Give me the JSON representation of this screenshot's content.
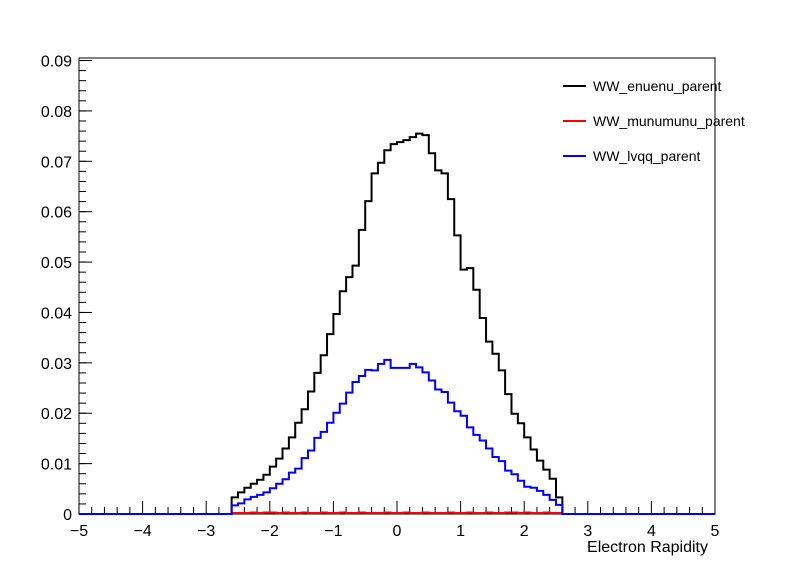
{
  "chart_data": {
    "type": "line",
    "style": "step-histogram",
    "title": "",
    "xlabel": "Electron Rapidity",
    "ylabel": "",
    "xlim": [
      -5,
      5
    ],
    "ylim": [
      0,
      0.0905
    ],
    "grid": false,
    "legend_position": "top-right",
    "x_ticks": [
      -5,
      -4,
      -3,
      -2,
      -1,
      0,
      1,
      2,
      3,
      4,
      5
    ],
    "x_tick_labels": [
      "−5",
      "−4",
      "−3",
      "−2",
      "−1",
      "0",
      "1",
      "2",
      "3",
      "4",
      "5"
    ],
    "y_ticks": [
      0,
      0.01,
      0.02,
      0.03,
      0.04,
      0.05,
      0.06,
      0.07,
      0.08,
      0.09
    ],
    "y_tick_labels": [
      "0",
      "0.01",
      "0.02",
      "0.03",
      "0.04",
      "0.05",
      "0.06",
      "0.07",
      "0.08",
      "0.09"
    ],
    "bin_width": 0.1,
    "x": [
      -2.6,
      -2.5,
      -2.4,
      -2.3,
      -2.2,
      -2.1,
      -2.0,
      -1.9,
      -1.8,
      -1.7,
      -1.6,
      -1.5,
      -1.4,
      -1.3,
      -1.2,
      -1.1,
      -1.0,
      -0.9,
      -0.8,
      -0.7,
      -0.6,
      -0.5,
      -0.4,
      -0.3,
      -0.2,
      -0.1,
      0.0,
      0.1,
      0.2,
      0.3,
      0.4,
      0.5,
      0.6,
      0.7,
      0.8,
      0.9,
      1.0,
      1.1,
      1.2,
      1.3,
      1.4,
      1.5,
      1.6,
      1.7,
      1.8,
      1.9,
      2.0,
      2.1,
      2.2,
      2.3,
      2.4,
      2.5
    ],
    "series": [
      {
        "name": "WW_enuenu_parent",
        "color": "#000000",
        "values": [
          0.0033,
          0.0043,
          0.0052,
          0.006,
          0.0068,
          0.0078,
          0.0094,
          0.011,
          0.013,
          0.0152,
          0.0181,
          0.0208,
          0.0243,
          0.028,
          0.0315,
          0.0357,
          0.0397,
          0.0442,
          0.047,
          0.0493,
          0.0564,
          0.0621,
          0.0676,
          0.0697,
          0.0722,
          0.0734,
          0.0738,
          0.0742,
          0.0748,
          0.0755,
          0.0752,
          0.0716,
          0.0682,
          0.0676,
          0.0625,
          0.0553,
          0.0485,
          0.0488,
          0.0445,
          0.0389,
          0.0342,
          0.0318,
          0.0285,
          0.0238,
          0.0199,
          0.018,
          0.0152,
          0.0128,
          0.0106,
          0.0088,
          0.007,
          0.0033
        ]
      },
      {
        "name": "WW_munumunu_parent",
        "color": "#ff0000",
        "values": [
          0.0002,
          0.0002,
          0.0002,
          0.0003,
          0.0002,
          0.0003,
          0.0003,
          0.0002,
          0.0003,
          0.0002,
          0.0002,
          0.0003,
          0.0002,
          0.0002,
          0.0003,
          0.0002,
          0.0002,
          0.0003,
          0.0002,
          0.0002,
          0.0003,
          0.0002,
          0.0002,
          0.0002,
          0.0003,
          0.0002,
          0.0002,
          0.0003,
          0.0002,
          0.0002,
          0.0003,
          0.0002,
          0.0002,
          0.0002,
          0.0003,
          0.0002,
          0.0002,
          0.0003,
          0.0002,
          0.0002,
          0.0003,
          0.0002,
          0.0002,
          0.0003,
          0.0003,
          0.0002,
          0.0003,
          0.0002,
          0.0002,
          0.0003,
          0.0002,
          0.0002
        ]
      },
      {
        "name": "WW_lvqq_parent",
        "color": "#0000ff",
        "values": [
          0.0017,
          0.0021,
          0.0029,
          0.0034,
          0.0038,
          0.0043,
          0.0051,
          0.006,
          0.0069,
          0.0082,
          0.009,
          0.0111,
          0.0126,
          0.0151,
          0.0163,
          0.0181,
          0.0201,
          0.0219,
          0.0241,
          0.0262,
          0.0274,
          0.0286,
          0.0285,
          0.0298,
          0.0306,
          0.029,
          0.029,
          0.029,
          0.0298,
          0.0291,
          0.0281,
          0.0265,
          0.0247,
          0.0242,
          0.0221,
          0.0204,
          0.0195,
          0.0172,
          0.0157,
          0.0146,
          0.013,
          0.0113,
          0.0105,
          0.0086,
          0.0079,
          0.0066,
          0.0054,
          0.0052,
          0.0046,
          0.0038,
          0.0028,
          0.0018
        ]
      }
    ]
  }
}
